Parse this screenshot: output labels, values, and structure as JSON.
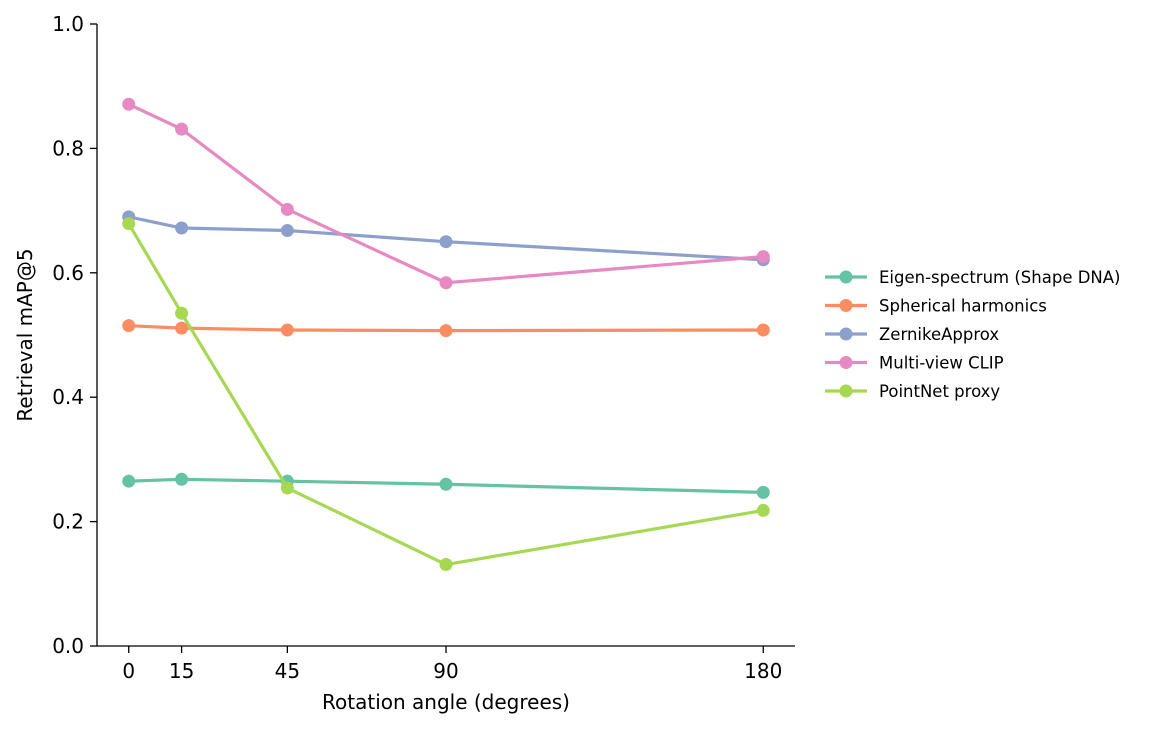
{
  "chart_data": {
    "type": "line",
    "xlabel": "Rotation angle (degrees)",
    "ylabel": "Retrieval mAP@5",
    "x": [
      0,
      15,
      45,
      90,
      180
    ],
    "xticks": [
      "0",
      "15",
      "45",
      "90",
      "180"
    ],
    "yticks": [
      "0.0",
      "0.2",
      "0.4",
      "0.6",
      "0.8",
      "1.0"
    ],
    "xlim": [
      -9,
      189
    ],
    "ylim": [
      0,
      1
    ],
    "grid": false,
    "legend_position": "right",
    "series": [
      {
        "name": "Eigen-spectrum (Shape DNA)",
        "color": "#66c2a5",
        "values": [
          0.265,
          0.268,
          0.265,
          0.26,
          0.247
        ]
      },
      {
        "name": "Spherical harmonics",
        "color": "#fc8d62",
        "values": [
          0.515,
          0.511,
          0.508,
          0.507,
          0.508
        ]
      },
      {
        "name": "ZernikeApprox",
        "color": "#8da0cb",
        "values": [
          0.69,
          0.672,
          0.668,
          0.65,
          0.621
        ]
      },
      {
        "name": "Multi-view CLIP",
        "color": "#e78ac3",
        "values": [
          0.871,
          0.831,
          0.702,
          0.584,
          0.626
        ]
      },
      {
        "name": "PointNet proxy",
        "color": "#a6d854",
        "values": [
          0.679,
          0.535,
          0.254,
          0.131,
          0.218
        ]
      }
    ]
  }
}
